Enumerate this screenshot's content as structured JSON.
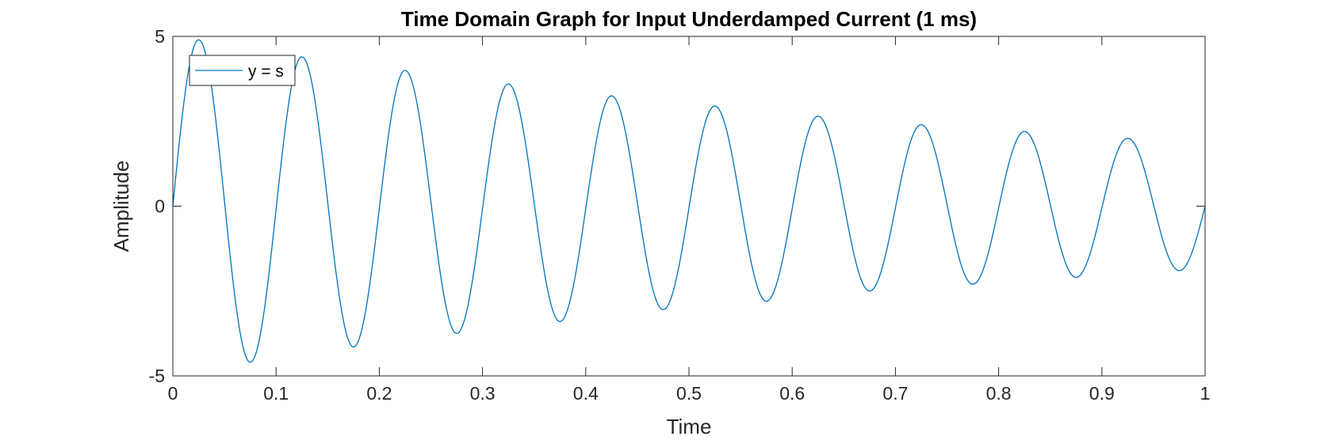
{
  "chart_data": {
    "type": "line",
    "title": "Time Domain Graph for Input Underdamped Current (1 ms)",
    "xlabel": "Time",
    "ylabel": "Amplitude",
    "xlim": [
      0,
      1
    ],
    "ylim": [
      -5,
      5
    ],
    "xticks": [
      "0",
      "0.1",
      "0.2",
      "0.3",
      "0.4",
      "0.5",
      "0.6",
      "0.7",
      "0.8",
      "0.9",
      "1"
    ],
    "yticks": [
      "-5",
      "0",
      "5"
    ],
    "grid": false,
    "legend_position": "top-left",
    "series": [
      {
        "name": "y = s",
        "color": "#0072BD",
        "x": [
          0,
          0.025,
          0.075,
          0.125,
          0.175,
          0.225,
          0.275,
          0.325,
          0.375,
          0.425,
          0.475,
          0.525,
          0.575,
          0.625,
          0.675,
          0.725,
          0.775,
          0.825,
          0.875,
          0.925,
          0.975,
          1
        ],
        "y": [
          0,
          4.9,
          -4.6,
          4.4,
          -4.15,
          4.0,
          -3.75,
          3.6,
          -3.4,
          3.25,
          -3.05,
          2.95,
          -2.8,
          2.65,
          -2.5,
          2.4,
          -2.3,
          2.2,
          -2.1,
          2.0,
          -1.9,
          0
        ]
      }
    ]
  }
}
